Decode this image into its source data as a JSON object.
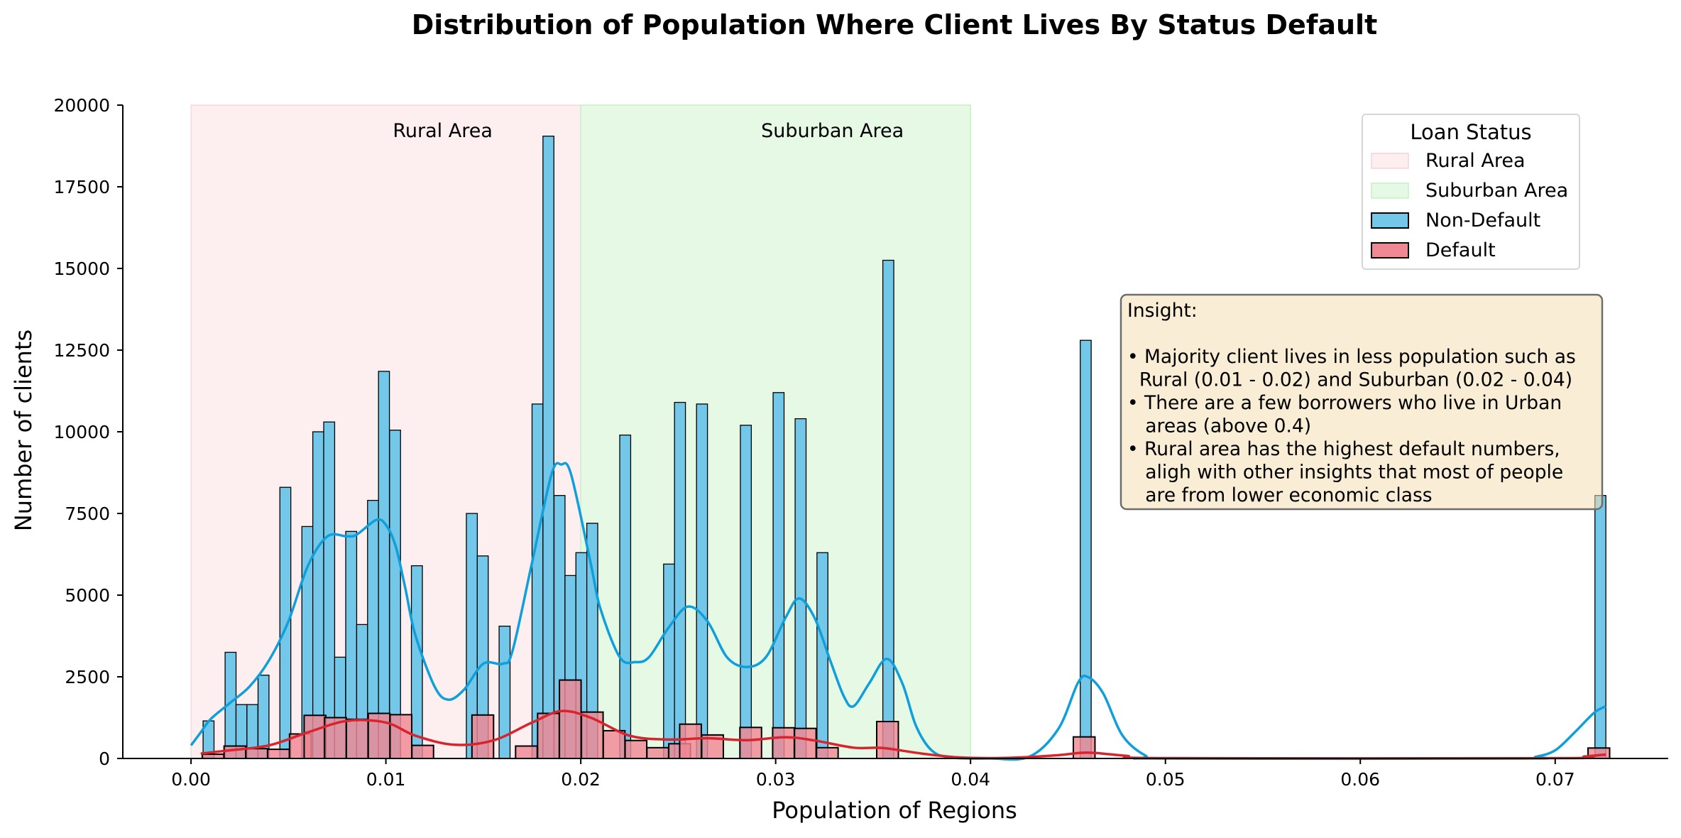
{
  "chart_data": {
    "type": "bar",
    "title": "Distribution of Population Where Client Lives By Status Default",
    "xlabel": "Population of Regions",
    "ylabel": "Number of clients",
    "xlim": [
      -0.0035,
      0.0758
    ],
    "ylim": [
      0,
      20000
    ],
    "xticks": [
      0.0,
      0.01,
      0.02,
      0.03,
      0.04,
      0.05,
      0.06,
      0.07
    ],
    "xtick_labels": [
      "0.00",
      "0.01",
      "0.02",
      "0.03",
      "0.04",
      "0.05",
      "0.06",
      "0.07"
    ],
    "yticks": [
      0,
      2500,
      5000,
      7500,
      10000,
      12500,
      15000,
      17500,
      20000
    ],
    "ytick_labels": [
      "0",
      "2500",
      "5000",
      "7500",
      "10000",
      "12500",
      "15000",
      "17500",
      "20000"
    ],
    "regions": [
      {
        "name": "Rural Area",
        "x0": 0.0,
        "x1": 0.02,
        "color": "#fdeef0",
        "border": "#f8d8dc"
      },
      {
        "name": "Suburban Area",
        "x0": 0.02,
        "x1": 0.04,
        "color": "#e5f9e5",
        "border": "#c8efc8"
      }
    ],
    "series": [
      {
        "name": "Non-Default",
        "color": "#73c7e8",
        "bin_width": 0.000562,
        "bins": [
          [
            0.0009,
            1150
          ],
          [
            0.00203,
            3250
          ],
          [
            0.00259,
            1650
          ],
          [
            0.00315,
            1650
          ],
          [
            0.00372,
            2550
          ],
          [
            0.00484,
            8300
          ],
          [
            0.00597,
            7100
          ],
          [
            0.00653,
            10000
          ],
          [
            0.00709,
            10300
          ],
          [
            0.00765,
            3100
          ],
          [
            0.00822,
            6950
          ],
          [
            0.00878,
            4100
          ],
          [
            0.00934,
            7900
          ],
          [
            0.0099,
            11850
          ],
          [
            0.01047,
            10050
          ],
          [
            0.01159,
            5900
          ],
          [
            0.01441,
            7500
          ],
          [
            0.01497,
            6200
          ],
          [
            0.01609,
            4050
          ],
          [
            0.01778,
            10850
          ],
          [
            0.01834,
            19050
          ],
          [
            0.01891,
            8050
          ],
          [
            0.01947,
            5600
          ],
          [
            0.02003,
            6300
          ],
          [
            0.02059,
            7200
          ],
          [
            0.02228,
            9900
          ],
          [
            0.02453,
            5950
          ],
          [
            0.02509,
            10900
          ],
          [
            0.02622,
            10850
          ],
          [
            0.02847,
            10200
          ],
          [
            0.03015,
            11200
          ],
          [
            0.03128,
            10400
          ],
          [
            0.0324,
            6300
          ],
          [
            0.03578,
            15250
          ],
          [
            0.04591,
            12800
          ],
          [
            0.07232,
            8050
          ]
        ],
        "kde": [
          [
            0.0,
            400
          ],
          [
            0.0005,
            800
          ],
          [
            0.001,
            1200
          ],
          [
            0.002,
            1700
          ],
          [
            0.003,
            2200
          ],
          [
            0.004,
            3000
          ],
          [
            0.005,
            4200
          ],
          [
            0.006,
            5900
          ],
          [
            0.007,
            6800
          ],
          [
            0.008,
            6800
          ],
          [
            0.0085,
            6850
          ],
          [
            0.0095,
            7300
          ],
          [
            0.01,
            7150
          ],
          [
            0.0105,
            6500
          ],
          [
            0.011,
            5200
          ],
          [
            0.0115,
            3800
          ],
          [
            0.0125,
            2200
          ],
          [
            0.0132,
            1800
          ],
          [
            0.014,
            2100
          ],
          [
            0.015,
            2900
          ],
          [
            0.016,
            2900
          ],
          [
            0.0165,
            3300
          ],
          [
            0.0175,
            6000
          ],
          [
            0.0185,
            8700
          ],
          [
            0.019,
            9000
          ],
          [
            0.0195,
            8700
          ],
          [
            0.0205,
            6000
          ],
          [
            0.021,
            4600
          ],
          [
            0.022,
            3100
          ],
          [
            0.0228,
            2950
          ],
          [
            0.0235,
            3100
          ],
          [
            0.0245,
            4000
          ],
          [
            0.0255,
            4650
          ],
          [
            0.0265,
            4200
          ],
          [
            0.0275,
            3100
          ],
          [
            0.0285,
            2800
          ],
          [
            0.0295,
            3100
          ],
          [
            0.0305,
            4300
          ],
          [
            0.0312,
            4900
          ],
          [
            0.032,
            4300
          ],
          [
            0.0328,
            3000
          ],
          [
            0.0335,
            1900
          ],
          [
            0.034,
            1600
          ],
          [
            0.0348,
            2300
          ],
          [
            0.0357,
            3050
          ],
          [
            0.0365,
            2300
          ],
          [
            0.0372,
            1000
          ],
          [
            0.038,
            250
          ],
          [
            0.039,
            30
          ],
          [
            0.041,
            0
          ],
          [
            0.043,
            50
          ],
          [
            0.0445,
            900
          ],
          [
            0.0455,
            2300
          ],
          [
            0.046,
            2500
          ],
          [
            0.0468,
            2000
          ],
          [
            0.0478,
            700
          ],
          [
            0.049,
            80
          ],
          [
            0.05,
            0
          ],
          [
            0.068,
            0
          ],
          [
            0.069,
            50
          ],
          [
            0.07,
            250
          ],
          [
            0.071,
            800
          ],
          [
            0.072,
            1400
          ],
          [
            0.0726,
            1600
          ]
        ]
      },
      {
        "name": "Default",
        "color": "#f08893",
        "bin_width": 0.00111,
        "bins": [
          [
            0.00113,
            130
          ],
          [
            0.00225,
            380
          ],
          [
            0.00337,
            300
          ],
          [
            0.00449,
            280
          ],
          [
            0.00561,
            750
          ],
          [
            0.00636,
            1320
          ],
          [
            0.00741,
            1250
          ],
          [
            0.00853,
            1200
          ],
          [
            0.00965,
            1380
          ],
          [
            0.01077,
            1340
          ],
          [
            0.01189,
            400
          ],
          [
            0.01497,
            1330
          ],
          [
            0.01721,
            380
          ],
          [
            0.01834,
            1380
          ],
          [
            0.01946,
            2400
          ],
          [
            0.02059,
            1420
          ],
          [
            0.02171,
            850
          ],
          [
            0.02283,
            550
          ],
          [
            0.02395,
            330
          ],
          [
            0.02507,
            450
          ],
          [
            0.02563,
            1050
          ],
          [
            0.02676,
            720
          ],
          [
            0.02872,
            950
          ],
          [
            0.0304,
            940
          ],
          [
            0.03152,
            920
          ],
          [
            0.03265,
            330
          ],
          [
            0.03574,
            1130
          ],
          [
            0.04583,
            660
          ],
          [
            0.07224,
            320
          ]
        ],
        "kde": [
          [
            0.0005,
            150
          ],
          [
            0.002,
            250
          ],
          [
            0.004,
            400
          ],
          [
            0.006,
            800
          ],
          [
            0.008,
            1150
          ],
          [
            0.01,
            1100
          ],
          [
            0.0115,
            700
          ],
          [
            0.0135,
            420
          ],
          [
            0.0155,
            550
          ],
          [
            0.0175,
            1100
          ],
          [
            0.019,
            1450
          ],
          [
            0.0205,
            1250
          ],
          [
            0.0225,
            700
          ],
          [
            0.0245,
            580
          ],
          [
            0.0265,
            620
          ],
          [
            0.0285,
            560
          ],
          [
            0.0305,
            650
          ],
          [
            0.032,
            550
          ],
          [
            0.034,
            330
          ],
          [
            0.0355,
            320
          ],
          [
            0.0375,
            150
          ],
          [
            0.0395,
            30
          ],
          [
            0.042,
            20
          ],
          [
            0.0445,
            100
          ],
          [
            0.046,
            180
          ],
          [
            0.048,
            80
          ],
          [
            0.05,
            10
          ],
          [
            0.07,
            10
          ],
          [
            0.0715,
            60
          ],
          [
            0.0726,
            120
          ]
        ]
      }
    ],
    "legend": {
      "title": "Loan Status",
      "placement": "top-right",
      "entries": [
        {
          "label": "Rural Area",
          "swatch": "#fdeef0",
          "edge": "#f6d3d8"
        },
        {
          "label": "Suburban Area",
          "swatch": "#e5f9e5",
          "edge": "#c6eec6"
        },
        {
          "label": "Non-Default",
          "swatch": "#73c7e8",
          "edge": "#000000"
        },
        {
          "label": "Default",
          "swatch": "#f08893",
          "edge": "#000000"
        }
      ]
    },
    "annotation": {
      "lines": [
        "Insight:",
        "",
        "• Majority client lives in less population such as",
        "  Rural (0.01 - 0.02) and Suburban (0.02 - 0.04)",
        "• There are a few borrowers who live in Urban",
        "   areas (above 0.4)",
        "• Rural area has the highest default numbers,",
        "   aligh with other insights that most of people",
        "   are from lower economic class"
      ]
    },
    "grid": false
  }
}
